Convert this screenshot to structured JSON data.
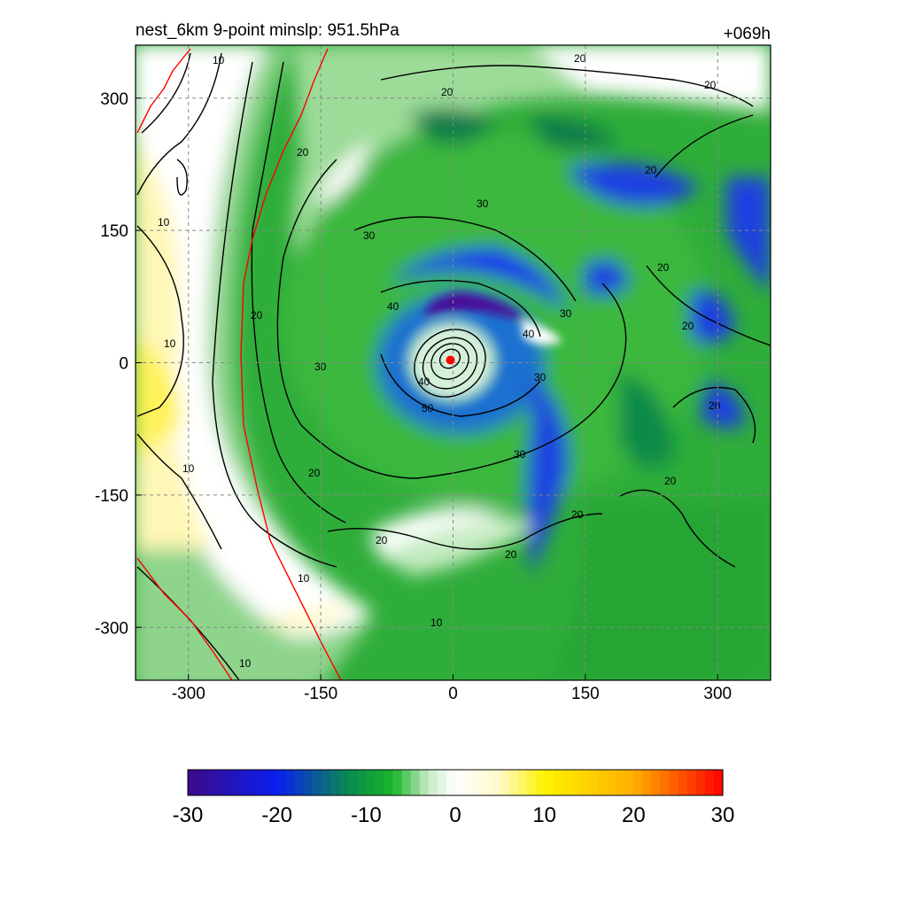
{
  "chart_data": {
    "type": "heatmap",
    "title_left": "nest_6km  9-point minslp: 951.5hPa",
    "title_right": "+069h",
    "xlim": [
      -360,
      360
    ],
    "ylim": [
      -360,
      360
    ],
    "x_ticks": [
      -300,
      -150,
      0,
      150,
      300
    ],
    "y_ticks": [
      -300,
      -150,
      0,
      150,
      300
    ],
    "grid": "dashed",
    "colorbar": {
      "range": [
        -30,
        30
      ],
      "ticks": [
        -30,
        -20,
        -10,
        0,
        10,
        20,
        30
      ],
      "colors": {
        "-30": "#3d0a88",
        "-20": "#0a1ef0",
        "-12": "#0a8a50",
        "-7": "#19b52a",
        "-3": "#c8ecc5",
        "0": "#ffffff",
        "5": "#fff9c8",
        "10": "#fff200",
        "20": "#ffb000",
        "30": "#ff0000"
      }
    },
    "contour_levels": [
      10,
      20,
      30,
      40,
      50
    ],
    "center_marker": {
      "x": -3,
      "y": 3,
      "color": "#ff0000"
    }
  }
}
